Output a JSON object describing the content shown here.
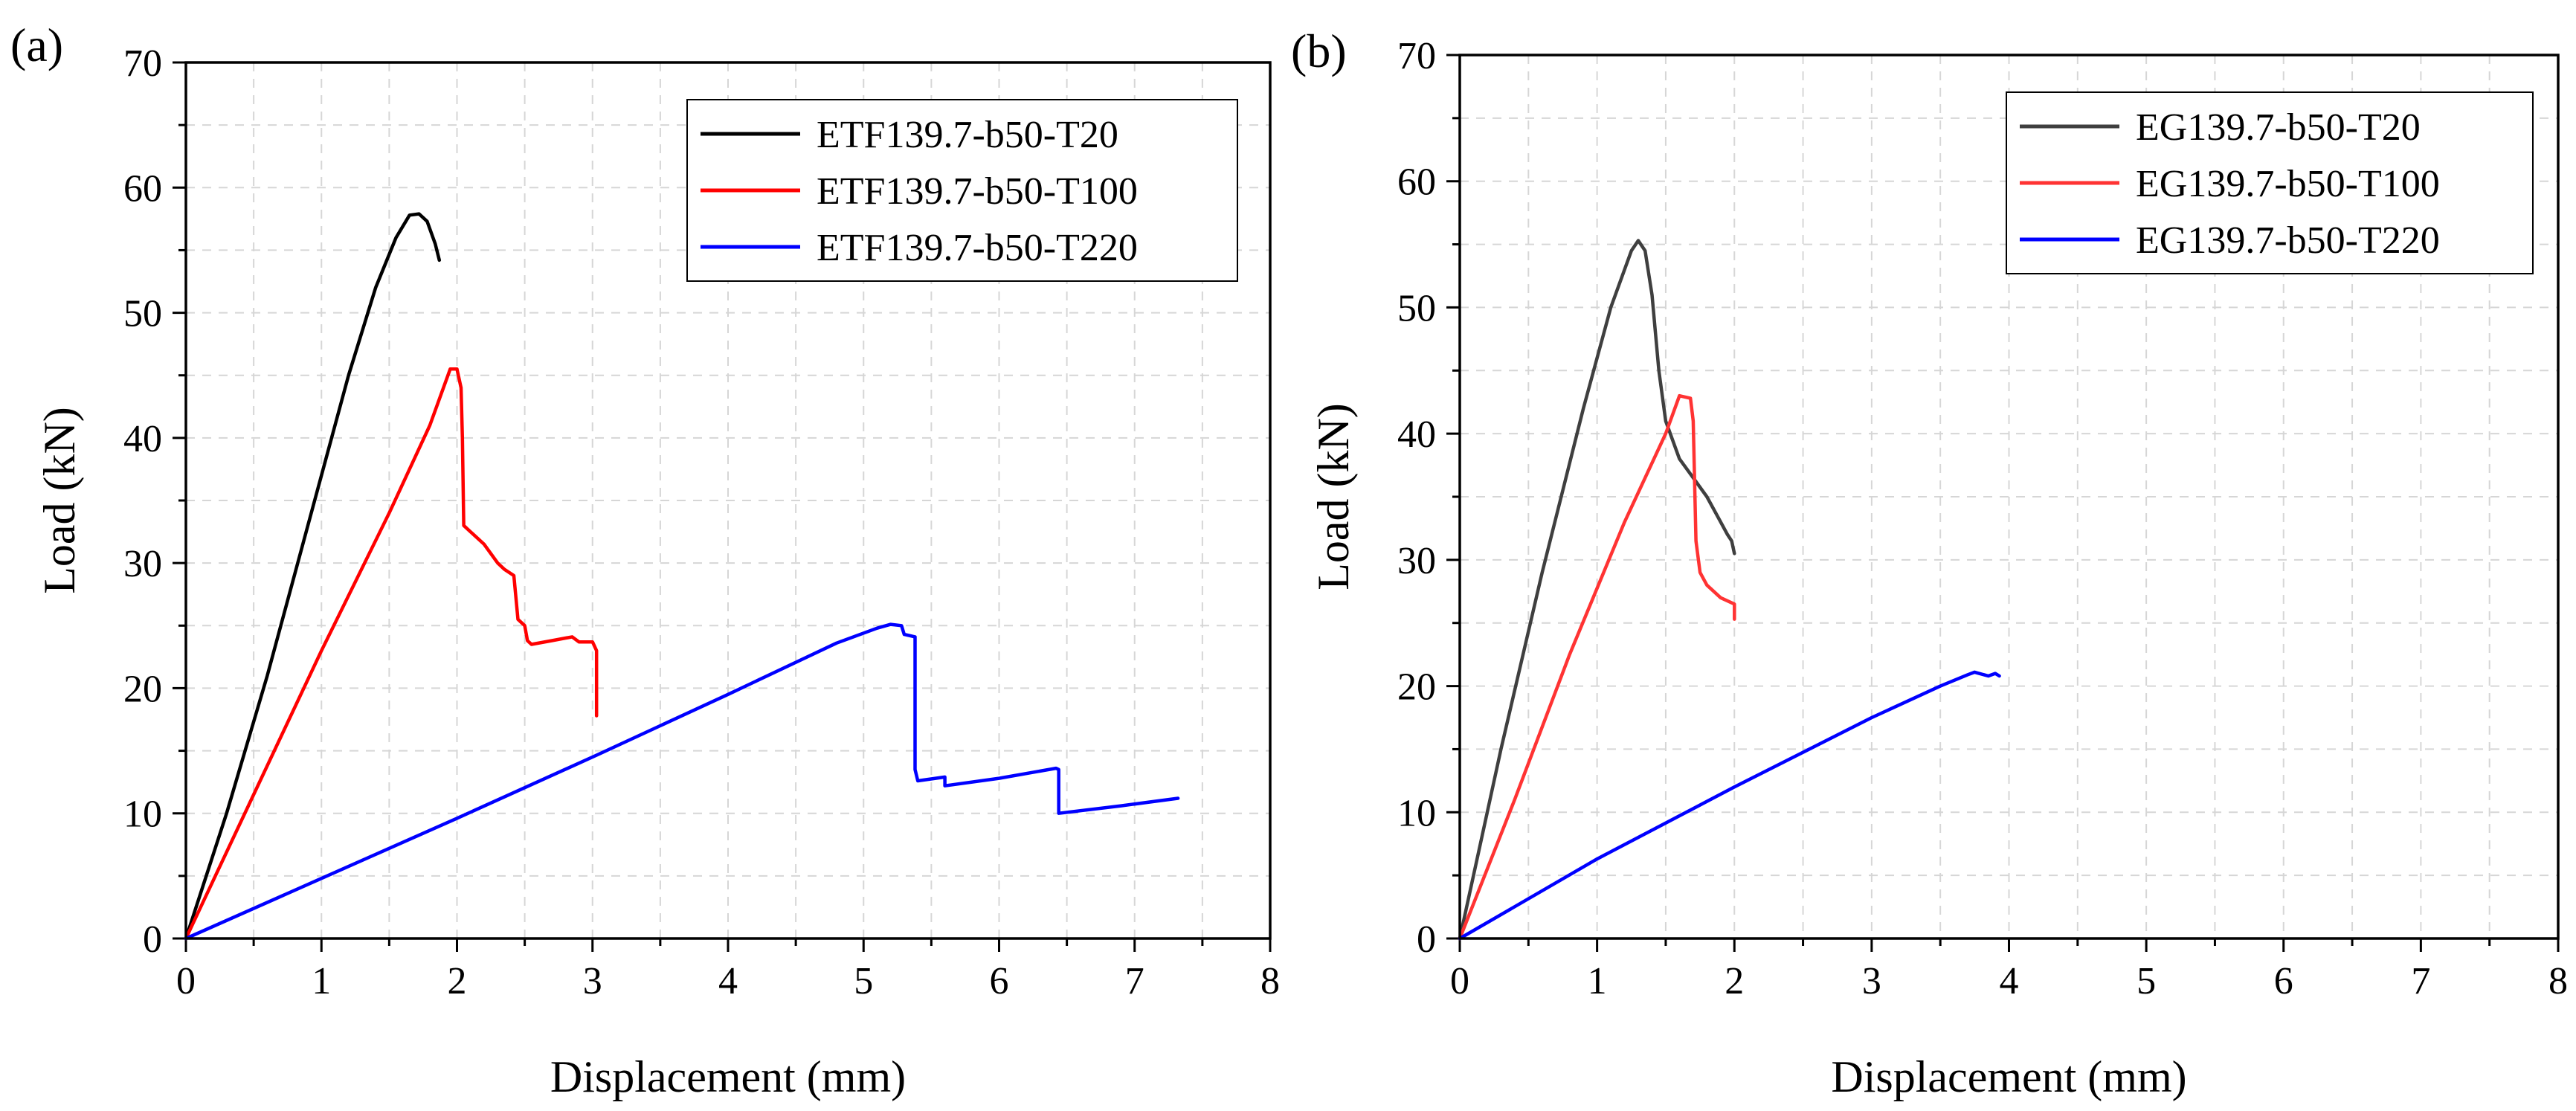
{
  "chart_data": [
    {
      "panel_label": "(a)",
      "type": "line",
      "xlabel": "Displacement (mm)",
      "ylabel": "Load (kN)",
      "xlim": [
        0,
        8
      ],
      "ylim": [
        0,
        70
      ],
      "xticks": [
        0,
        1,
        2,
        3,
        4,
        5,
        6,
        7,
        8
      ],
      "yticks": [
        0,
        10,
        20,
        30,
        40,
        50,
        60,
        70
      ],
      "grid": true,
      "legend_position": "top-right",
      "series": [
        {
          "name": "ETF139.7-b50-T20",
          "color": "#000000",
          "x": [
            0,
            0.3,
            0.6,
            0.9,
            1.2,
            1.4,
            1.55,
            1.65,
            1.72,
            1.78,
            1.84,
            1.87
          ],
          "y": [
            0,
            10,
            21,
            33,
            45,
            52,
            56,
            57.8,
            57.9,
            57.3,
            55.5,
            54.2
          ]
        },
        {
          "name": "ETF139.7-b50-T100",
          "color": "#ff0000",
          "x": [
            0,
            0.5,
            1.0,
            1.5,
            1.8,
            1.95,
            2.0,
            2.03,
            2.04,
            2.05,
            2.1,
            2.2,
            2.3,
            2.35,
            2.42,
            2.45,
            2.45,
            2.5,
            2.52,
            2.55,
            2.7,
            2.85,
            2.9,
            3.0,
            3.03,
            3.03
          ],
          "y": [
            0,
            11.5,
            23,
            34,
            41,
            45.5,
            45.5,
            44,
            40,
            33,
            32.5,
            31.5,
            30,
            29.5,
            29,
            25.5,
            25.5,
            25,
            23.8,
            23.5,
            23.8,
            24.1,
            23.7,
            23.7,
            23,
            17.8
          ]
        },
        {
          "name": "ETF139.7-b50-T220",
          "color": "#0000ff",
          "x": [
            0,
            1.0,
            2.0,
            3.0,
            4.0,
            4.8,
            5.1,
            5.2,
            5.28,
            5.3,
            5.38,
            5.38,
            5.4,
            5.6,
            5.6,
            6.0,
            6.42,
            6.44,
            6.44,
            6.9,
            7.32
          ],
          "y": [
            0,
            4.8,
            9.6,
            14.5,
            19.5,
            23.6,
            24.8,
            25.1,
            25.0,
            24.3,
            24.1,
            13.5,
            12.6,
            12.9,
            12.2,
            12.8,
            13.6,
            13.5,
            10.0,
            10.6,
            11.2
          ]
        }
      ]
    },
    {
      "panel_label": "(b)",
      "type": "line",
      "xlabel": "Displacement (mm)",
      "ylabel": "Load (kN)",
      "xlim": [
        0,
        8
      ],
      "ylim": [
        0,
        70
      ],
      "xticks": [
        0,
        1,
        2,
        3,
        4,
        5,
        6,
        7,
        8
      ],
      "yticks": [
        0,
        10,
        20,
        30,
        40,
        50,
        60,
        70
      ],
      "grid": true,
      "legend_position": "top-right",
      "series": [
        {
          "name": "EG139.7-b50-T20",
          "color": "#3f3f3f",
          "x": [
            0,
            0.3,
            0.6,
            0.9,
            1.1,
            1.25,
            1.3,
            1.35,
            1.4,
            1.45,
            1.5,
            1.6,
            1.7,
            1.8,
            1.9,
            1.95,
            1.98,
            2.0
          ],
          "y": [
            0,
            15,
            29,
            42,
            50,
            54.5,
            55.3,
            54.5,
            51,
            45,
            41,
            38,
            36.5,
            35,
            33,
            32,
            31.5,
            30.5
          ]
        },
        {
          "name": "EG139.7-b50-T100",
          "color": "#ff3333",
          "x": [
            0,
            0.4,
            0.8,
            1.2,
            1.5,
            1.6,
            1.68,
            1.7,
            1.72,
            1.75,
            1.8,
            1.9,
            2.0,
            2.0
          ],
          "y": [
            0,
            11,
            22.5,
            33,
            40,
            43,
            42.8,
            41,
            31.5,
            29,
            28,
            27,
            26.5,
            25.3
          ]
        },
        {
          "name": "EG139.7-b50-T220",
          "color": "#0000ff",
          "x": [
            0,
            1.0,
            2.0,
            3.0,
            3.5,
            3.7,
            3.75,
            3.85,
            3.9,
            3.93
          ],
          "y": [
            0,
            6.3,
            12,
            17.5,
            20,
            20.9,
            21.1,
            20.8,
            21.0,
            20.8
          ]
        }
      ]
    }
  ]
}
